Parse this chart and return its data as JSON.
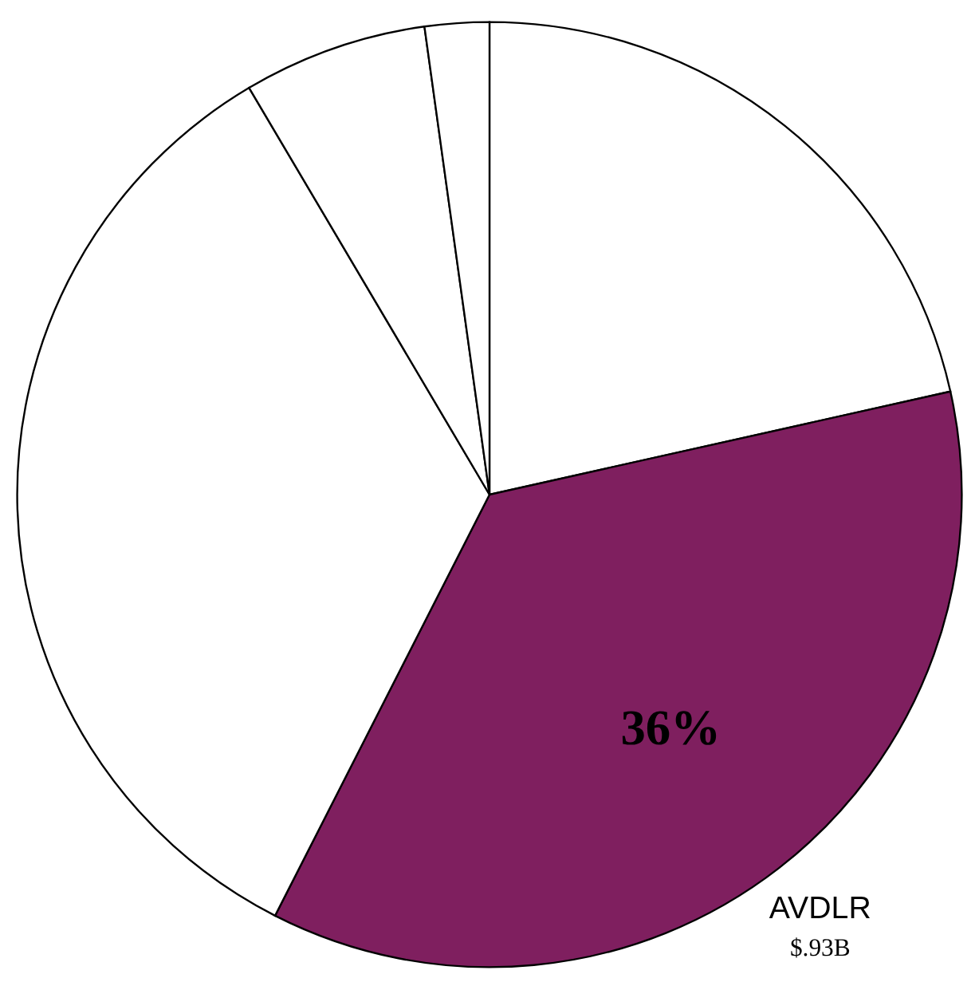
{
  "chart_data": {
    "type": "pie",
    "categories": [
      null,
      "AVDLR",
      null,
      null,
      null
    ],
    "values": [
      21.5,
      36,
      34,
      6.3,
      2.2
    ],
    "colors": [
      "#ffffff",
      "#7f1f5f",
      "#ffffff",
      "#ffffff",
      "#ffffff"
    ],
    "value_labels": [
      null,
      "36%",
      null,
      null,
      null
    ],
    "annotations": [
      "$.93B"
    ]
  }
}
